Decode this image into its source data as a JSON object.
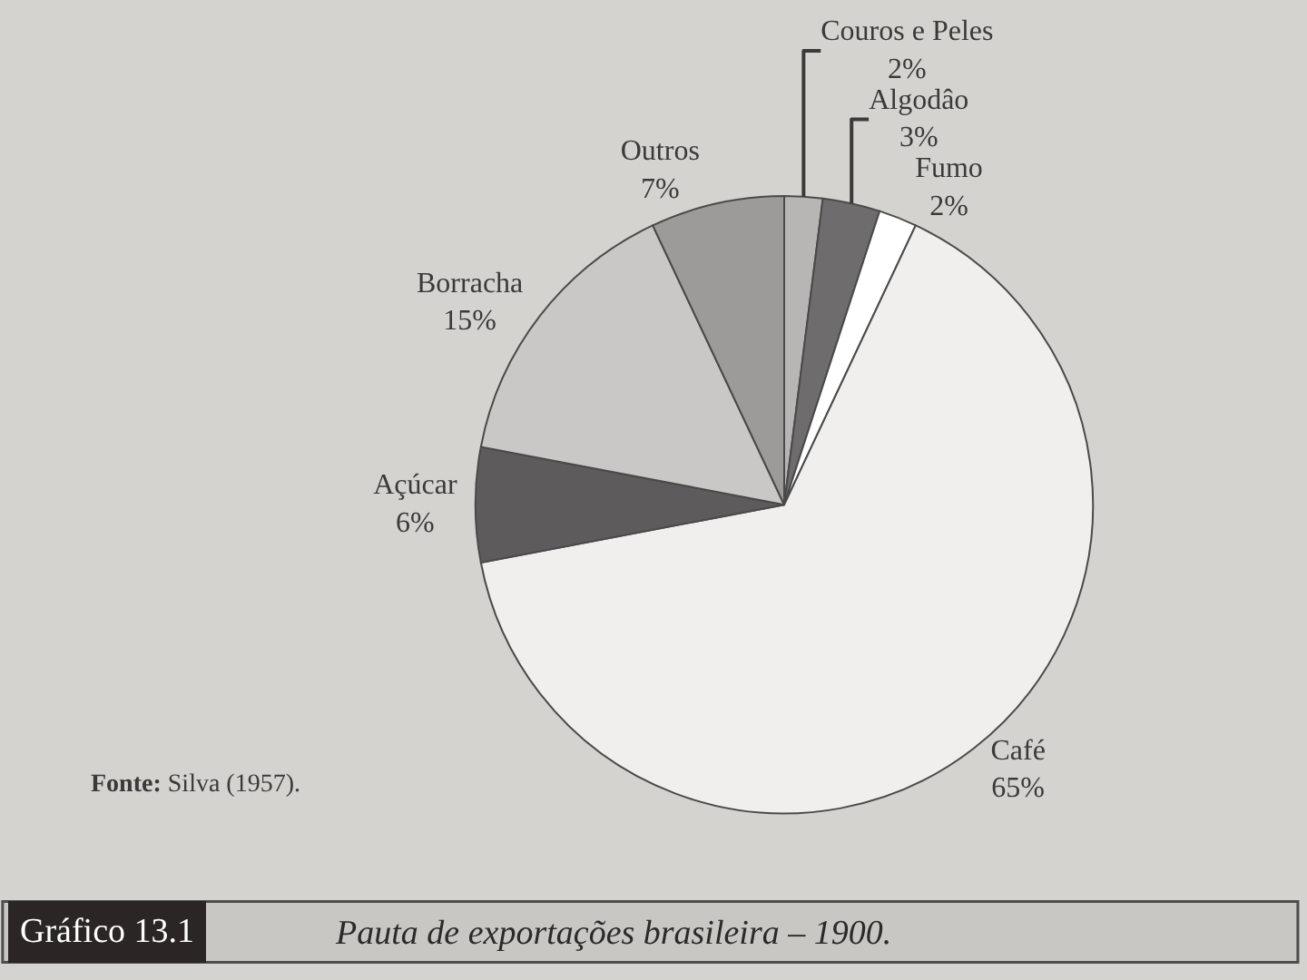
{
  "chart_data": {
    "type": "pie",
    "title": "Pauta de exportações brasileira – 1900.",
    "categories": [
      "Couros e Peles",
      "Algodâo",
      "Fumo",
      "Café",
      "Açúcar",
      "Borracha",
      "Outros"
    ],
    "values": [
      2,
      3,
      2,
      65,
      6,
      15,
      7
    ],
    "value_labels": [
      "2%",
      "3%",
      "2%",
      "65%",
      "6%",
      "15%",
      "7%"
    ],
    "colors": [
      "#b8b6b5",
      "#6f6c6e",
      "#ffffff",
      "#f1efed",
      "#5e5b5d",
      "#cac8c6",
      "#9d9b9a"
    ],
    "annotations": [
      "Gráfico 13.1",
      "Fonte: Silva (1957)."
    ]
  }
}
